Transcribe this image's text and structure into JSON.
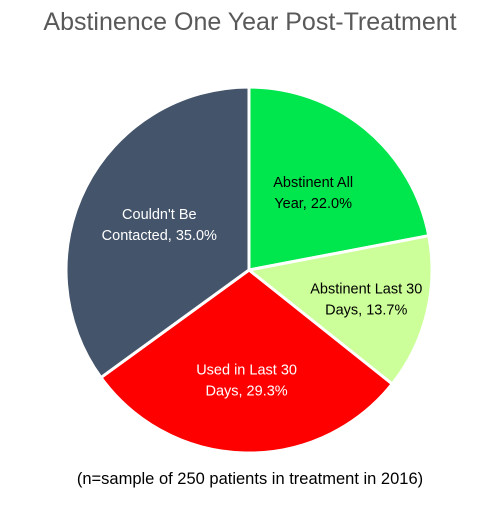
{
  "chart_data": {
    "type": "pie",
    "title": "Abstinence One Year Post-Treatment",
    "note": "(n=sample of 250 patients in treatment in 2016)",
    "slices": [
      {
        "label": "Abstinent All Year",
        "value": 22.0,
        "color": "#00E64D",
        "label_lines": [
          "Abstinent All",
          "Year, 22.0%"
        ],
        "text_color": "#000000"
      },
      {
        "label": "Abstinent Last 30 Days",
        "value": 13.7,
        "color": "#CCFF99",
        "label_lines": [
          "Abstinent Last 30",
          "Days, 13.7%"
        ],
        "text_color": "#000000"
      },
      {
        "label": "Used in Last 30 Days",
        "value": 29.3,
        "color": "#FF0000",
        "label_lines": [
          "Used in Last 30",
          "Days, 29.3%"
        ],
        "text_color": "#FFFFFF"
      },
      {
        "label": "Couldn't Be Contacted",
        "value": 35.0,
        "color": "#44546A",
        "label_lines": [
          "Couldn't Be",
          "Contacted, 35.0%"
        ],
        "text_color": "#FFFFFF"
      }
    ],
    "legend": "none"
  }
}
